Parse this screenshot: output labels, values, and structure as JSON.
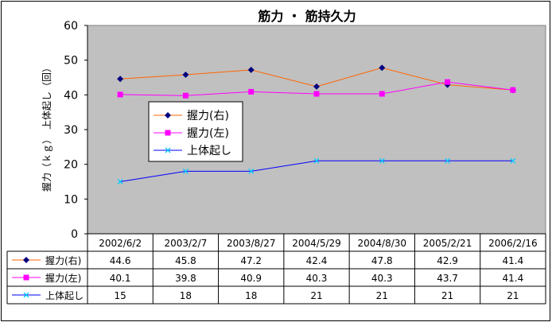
{
  "chart_data": {
    "type": "line",
    "title": "筋力 ・ 筋持久力",
    "ylabel": "握力（ｋｇ）　上体起し（回）",
    "xlabel": "",
    "ylim": [
      0,
      60
    ],
    "y_ticks": [
      0,
      10,
      20,
      30,
      40,
      50,
      60
    ],
    "grid": false,
    "legend_position": "left",
    "plot_background": "#c0c0c0",
    "categories": [
      "2002/6/2",
      "2003/2/7",
      "2003/8/27",
      "2004/5/29",
      "2004/8/30",
      "2005/2/21",
      "2006/2/16"
    ],
    "series": [
      {
        "name": "握力(右)",
        "values": [
          44.6,
          45.8,
          47.2,
          42.4,
          47.8,
          42.9,
          41.4
        ],
        "labels": [
          "44.6",
          "45.8",
          "47.2",
          "42.4",
          "47.8",
          "42.9",
          "41.4"
        ],
        "line_color": "#ff6600",
        "marker_color": "#000080",
        "marker": "diamond"
      },
      {
        "name": "握力(左)",
        "values": [
          40.1,
          39.8,
          40.9,
          40.3,
          40.3,
          43.7,
          41.4
        ],
        "labels": [
          "40.1",
          "39.8",
          "40.9",
          "40.3",
          "40.3",
          "43.7",
          "41.4"
        ],
        "line_color": "#ff00ff",
        "marker_color": "#ff00ff",
        "marker": "square"
      },
      {
        "name": "上体起し",
        "values": [
          15,
          18,
          18,
          21,
          21,
          21,
          21
        ],
        "labels": [
          "15",
          "18",
          "18",
          "21",
          "21",
          "21",
          "21"
        ],
        "line_color": "#0000ff",
        "marker_color": "#00ccff",
        "marker": "x"
      }
    ]
  }
}
